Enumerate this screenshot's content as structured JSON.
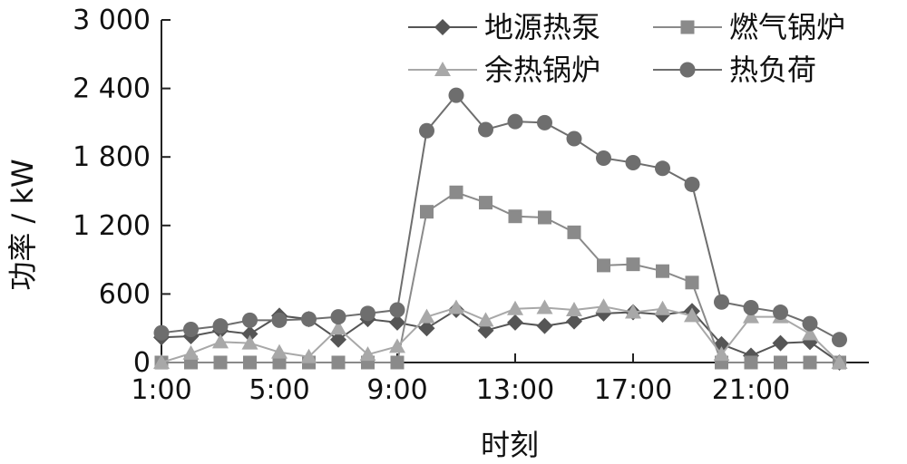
{
  "chart_data": {
    "type": "line",
    "xlabel": "时刻",
    "ylabel": "功率 / kW",
    "x": [
      1,
      2,
      3,
      4,
      5,
      6,
      7,
      8,
      9,
      10,
      11,
      12,
      13,
      14,
      15,
      16,
      17,
      18,
      19,
      20,
      21,
      22,
      23,
      24
    ],
    "xticks": [
      1,
      5,
      9,
      13,
      17,
      21
    ],
    "xtick_labels": [
      "1:00",
      "5:00",
      "9:00",
      "13:00",
      "17:00",
      "21:00"
    ],
    "xlim": [
      1,
      25
    ],
    "ylim": [
      0,
      3000
    ],
    "yticks": [
      0,
      600,
      1200,
      1800,
      2400,
      3000
    ],
    "ytick_labels": [
      "0",
      "600",
      "1 200",
      "1 800",
      "2 400",
      "3 000"
    ],
    "grid": false,
    "legend_position": "top-right",
    "series": [
      {
        "name": "地源热泵",
        "marker": "diamond",
        "color": "#555555",
        "values": [
          220,
          230,
          280,
          250,
          410,
          380,
          200,
          380,
          350,
          300,
          460,
          280,
          350,
          320,
          360,
          430,
          440,
          420,
          450,
          160,
          60,
          170,
          180,
          0
        ]
      },
      {
        "name": "燃气锅炉",
        "marker": "square",
        "color": "#8a8a8a",
        "values": [
          0,
          0,
          0,
          0,
          0,
          0,
          0,
          0,
          0,
          1320,
          1490,
          1400,
          1280,
          1270,
          1140,
          850,
          860,
          800,
          700,
          0,
          0,
          0,
          0,
          0
        ]
      },
      {
        "name": "余热锅炉",
        "marker": "triangle",
        "color": "#a8a8a8",
        "values": [
          0,
          80,
          180,
          170,
          90,
          50,
          300,
          70,
          140,
          400,
          480,
          370,
          470,
          480,
          460,
          490,
          440,
          470,
          410,
          70,
          400,
          400,
          250,
          0
        ]
      },
      {
        "name": "热负荷",
        "marker": "circle",
        "color": "#6e6e6e",
        "values": [
          260,
          290,
          320,
          370,
          370,
          380,
          400,
          430,
          460,
          2030,
          2340,
          2040,
          2110,
          2100,
          1960,
          1790,
          1750,
          1700,
          1560,
          530,
          480,
          440,
          340,
          200
        ]
      }
    ]
  }
}
